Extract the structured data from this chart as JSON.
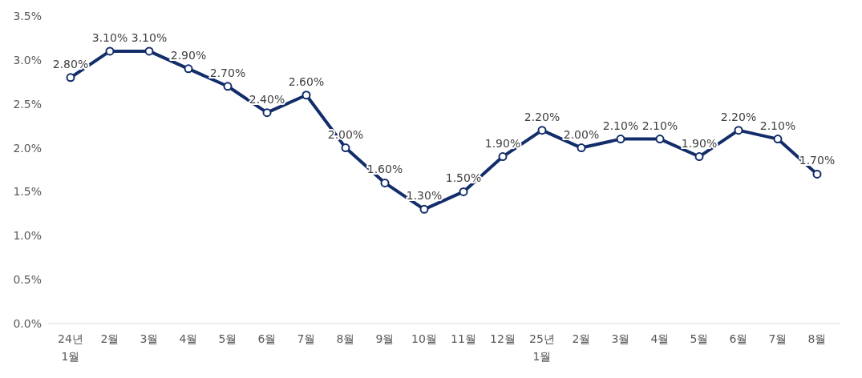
{
  "chart_data": {
    "type": "line",
    "categories": [
      "24년 1월",
      "2월",
      "3월",
      "4월",
      "5월",
      "6월",
      "7월",
      "8월",
      "9월",
      "10월",
      "11월",
      "12월",
      "25년 1월",
      "2월",
      "3월",
      "4월",
      "5월",
      "6월",
      "7월",
      "8월"
    ],
    "series": [
      {
        "color": "#132d6b",
        "values": [
          2.8,
          3.1,
          3.1,
          2.9,
          2.7,
          2.4,
          2.6,
          2.0,
          1.6,
          1.3,
          1.5,
          1.9,
          2.2,
          2.0,
          2.1,
          2.1,
          1.9,
          2.2,
          2.1,
          1.7
        ],
        "value_labels": [
          "2.80%",
          "3.10%",
          "3.10%",
          "2.90%",
          "2.70%",
          "2.40%",
          "2.60%",
          "2.00%",
          "1.60%",
          "1.30%",
          "1.50%",
          "1.90%",
          "2.20%",
          "2.00%",
          "2.10%",
          "2.10%",
          "1.90%",
          "2.20%",
          "2.10%",
          "1.70%"
        ]
      }
    ],
    "ylim": [
      0,
      3.5
    ],
    "yticks": [
      {
        "value": 0,
        "label": "0.0%"
      },
      {
        "value": 0.5,
        "label": "0.5%"
      },
      {
        "value": 1,
        "label": "1.0%"
      },
      {
        "value": 1.5,
        "label": "1.5%"
      },
      {
        "value": 2,
        "label": "2.0%"
      },
      {
        "value": 2.5,
        "label": "2.5%"
      },
      {
        "value": 3,
        "label": "3.0%"
      },
      {
        "value": 3.5,
        "label": "3.5%"
      }
    ],
    "grid": false,
    "legend": false,
    "marker": "circle",
    "line_style": "solid"
  }
}
